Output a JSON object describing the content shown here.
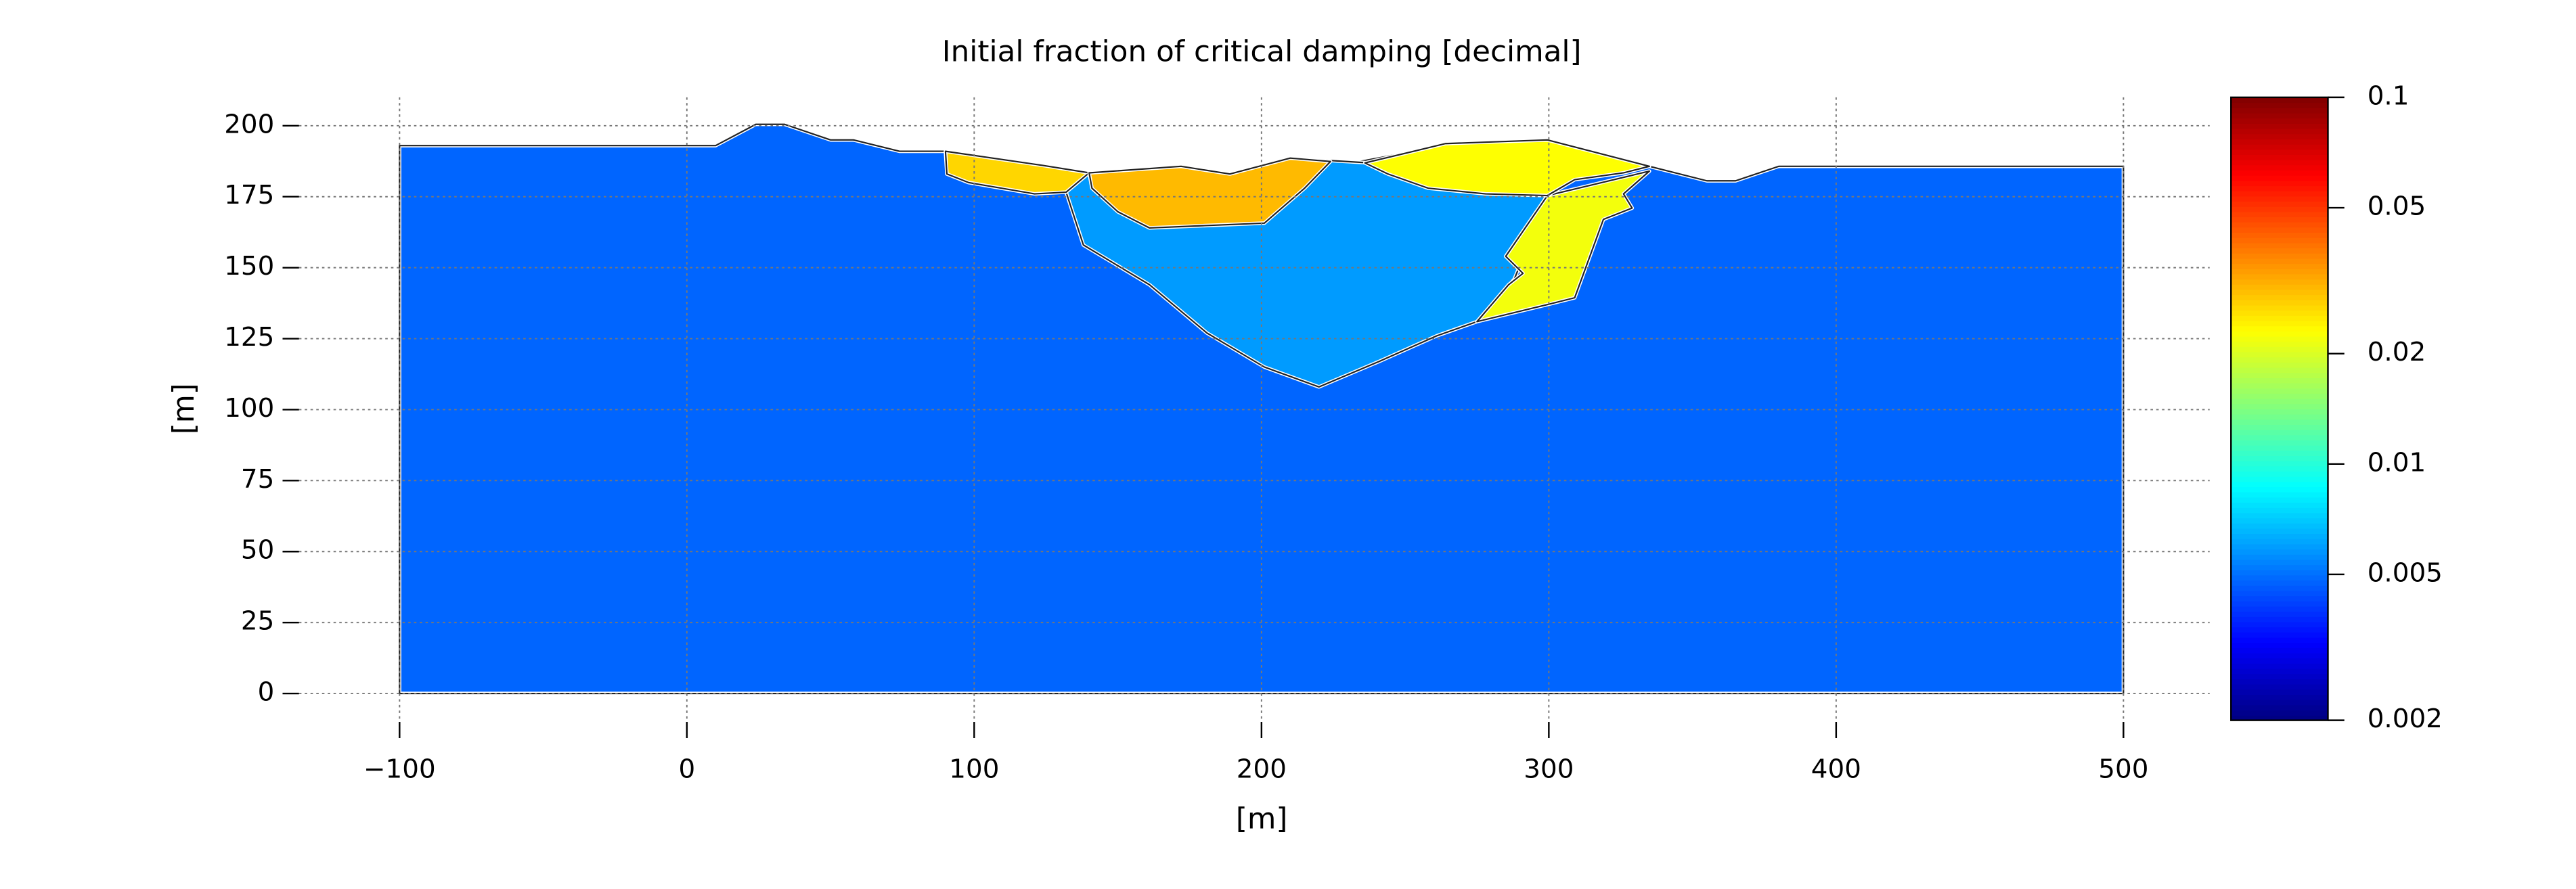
{
  "chart_data": {
    "type": "field",
    "title": "Initial fraction of critical damping [decimal]",
    "xlabel": "[m]",
    "ylabel": "[m]",
    "xlim": [
      -135,
      530
    ],
    "ylim": [
      -10,
      210
    ],
    "xticks": [
      {
        "value": -100,
        "label": "−100"
      },
      0,
      100,
      200,
      300,
      400,
      500
    ],
    "yticks": [
      0,
      25,
      50,
      75,
      100,
      125,
      150,
      175,
      200
    ],
    "grid": true,
    "colormap": "jet",
    "color_scale": "log",
    "clim": [
      0.002,
      0.1
    ],
    "cticks": [
      0.002,
      0.005,
      0.01,
      0.02,
      0.05,
      0.1
    ],
    "regions": [
      {
        "value": 0.0048,
        "x": [
          -100,
          -100,
          10,
          24,
          34,
          50,
          58,
          74,
          90,
          124,
          140,
          172,
          189,
          210,
          232,
          253,
          264,
          300,
          335,
          355,
          365,
          380,
          500,
          500
        ],
        "y": [
          0,
          193,
          193,
          200.5,
          200.5,
          195,
          195,
          191,
          191,
          186,
          183.4,
          185.7,
          183,
          188.6,
          187,
          191,
          193.7,
          195,
          185.7,
          180.6,
          180.6,
          185.7,
          185.7,
          0
        ]
      },
      {
        "value": 0.0059,
        "x": [
          140,
          132,
          138,
          161,
          181,
          201,
          220,
          241,
          261,
          275,
          288,
          300,
          236,
          210,
          189,
          172
        ],
        "y": [
          183.4,
          176.6,
          158,
          144,
          127,
          115,
          108,
          117,
          126,
          131,
          146,
          176,
          187,
          188.6,
          183,
          185.7
        ]
      },
      {
        "value": 0.022,
        "x": [
          275,
          299.5,
          309,
          319,
          329,
          326,
          335,
          299.5,
          285,
          291,
          286
        ],
        "y": [
          131,
          137,
          139.4,
          167,
          171,
          176,
          184,
          175.4,
          154,
          148,
          144
        ]
      },
      {
        "value": 0.023,
        "x": [
          236,
          253,
          264,
          299.5,
          335,
          326,
          309,
          299.5,
          278,
          258,
          244
        ],
        "y": [
          186.9,
          191,
          193.7,
          195,
          185.7,
          183.4,
          181,
          175.4,
          176,
          178,
          183
        ]
      },
      {
        "value": 0.027,
        "x": [
          90,
          124,
          140,
          132,
          121,
          98,
          90.5
        ],
        "y": [
          191,
          186,
          183.4,
          176.6,
          176,
          180,
          183
        ]
      },
      {
        "value": 0.03,
        "x": [
          140,
          172,
          189,
          210,
          224,
          215,
          201,
          161,
          150,
          141
        ],
        "y": [
          183.4,
          185.7,
          183,
          188.6,
          187.4,
          178,
          165.7,
          164,
          169.7,
          178
        ]
      }
    ]
  }
}
